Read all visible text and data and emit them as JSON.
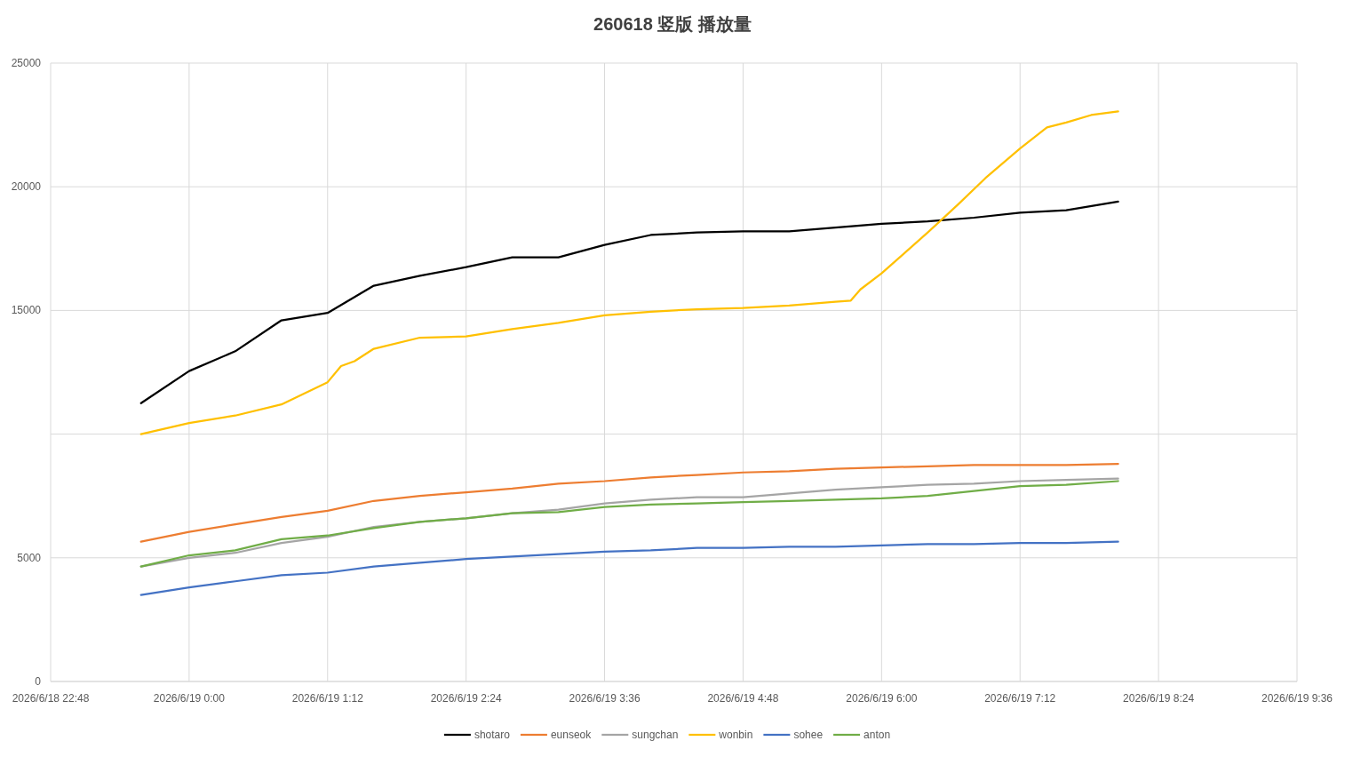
{
  "chart_data": {
    "type": "line",
    "title": "260618 竖版 播放量",
    "legend": "bottom",
    "grid": true,
    "marker": "none",
    "line_style": "solid",
    "xlim": [
      "2026-06-18T22:48",
      "2026-06-19T09:36"
    ],
    "xticks": [
      {
        "value": "2026-06-18T22:48",
        "label": "2026/6/18 22:48"
      },
      {
        "value": "2026-06-19T00:00",
        "label": "2026/6/19 0:00"
      },
      {
        "value": "2026-06-19T01:12",
        "label": "2026/6/19 1:12"
      },
      {
        "value": "2026-06-19T02:24",
        "label": "2026/6/19 2:24"
      },
      {
        "value": "2026-06-19T03:36",
        "label": "2026/6/19 3:36"
      },
      {
        "value": "2026-06-19T04:48",
        "label": "2026/6/19 4:48"
      },
      {
        "value": "2026-06-19T06:00",
        "label": "2026/6/19 6:00"
      },
      {
        "value": "2026-06-19T07:12",
        "label": "2026/6/19 7:12"
      },
      {
        "value": "2026-06-19T08:24",
        "label": "2026/6/19 8:24"
      },
      {
        "value": "2026-06-19T09:36",
        "label": "2026/6/19 9:36"
      }
    ],
    "ylim": [
      0,
      25000
    ],
    "yticks": [
      0,
      5000,
      {
        "value": 10000,
        "label": null
      },
      15000,
      20000,
      25000
    ],
    "x": [
      "2026-06-18T23:35",
      "2026-06-19T00:00",
      "2026-06-19T00:24",
      "2026-06-19T00:48",
      "2026-06-19T01:12",
      "2026-06-19T01:36",
      "2026-06-19T02:00",
      "2026-06-19T02:24",
      "2026-06-19T02:48",
      "2026-06-19T03:12",
      "2026-06-19T03:36",
      "2026-06-19T04:00",
      "2026-06-19T04:24",
      "2026-06-19T04:48",
      "2026-06-19T05:12",
      "2026-06-19T05:36",
      "2026-06-19T06:00",
      "2026-06-19T06:24",
      "2026-06-19T06:48",
      "2026-06-19T07:12",
      "2026-06-19T07:36",
      "2026-06-19T08:03"
    ],
    "series": [
      {
        "name": "shotaro",
        "color": "#000000",
        "values": [
          11250,
          12550,
          13350,
          14600,
          14900,
          16000,
          16400,
          16750,
          17150,
          17150,
          17650,
          18050,
          18150,
          18200,
          18200,
          18350,
          18500,
          18600,
          18750,
          18950,
          19050,
          19400
        ]
      },
      {
        "name": "eunseok",
        "color": "#ed7d31",
        "values": [
          5650,
          6050,
          6350,
          6650,
          6900,
          7300,
          7500,
          7650,
          7800,
          8000,
          8100,
          8250,
          8350,
          8450,
          8500,
          8600,
          8650,
          8700,
          8750,
          8750,
          8750,
          8800
        ]
      },
      {
        "name": "sungchan",
        "color": "#a5a5a5",
        "values": [
          4650,
          5000,
          5200,
          5600,
          5850,
          6250,
          6450,
          6600,
          6800,
          6950,
          7200,
          7350,
          7450,
          7450,
          7600,
          7750,
          7850,
          7950,
          8000,
          8100,
          8150,
          8200
        ]
      },
      {
        "name": "wonbin",
        "color": "#ffc000",
        "x": [
          "2026-06-18T23:35",
          "2026-06-19T00:00",
          "2026-06-19T00:24",
          "2026-06-19T00:48",
          "2026-06-19T01:12",
          "2026-06-19T01:19",
          "2026-06-19T01:26",
          "2026-06-19T01:36",
          "2026-06-19T02:00",
          "2026-06-19T02:24",
          "2026-06-19T02:48",
          "2026-06-19T03:12",
          "2026-06-19T03:36",
          "2026-06-19T04:00",
          "2026-06-19T04:24",
          "2026-06-19T04:48",
          "2026-06-19T05:12",
          "2026-06-19T05:36",
          "2026-06-19T05:44",
          "2026-06-19T05:49",
          "2026-06-19T06:00",
          "2026-06-19T06:24",
          "2026-06-19T06:40",
          "2026-06-19T06:54",
          "2026-06-19T07:12",
          "2026-06-19T07:26",
          "2026-06-19T07:36",
          "2026-06-19T07:49",
          "2026-06-19T08:03"
        ],
        "values": [
          10000,
          10450,
          10750,
          11200,
          12100,
          12750,
          12950,
          13450,
          13900,
          13950,
          14250,
          14500,
          14800,
          14950,
          15050,
          15100,
          15200,
          15350,
          15400,
          15850,
          16500,
          18150,
          19300,
          20350,
          21550,
          22400,
          22600,
          22900,
          23050
        ]
      },
      {
        "name": "sohee",
        "color": "#4472c4",
        "values": [
          3500,
          3800,
          4050,
          4300,
          4400,
          4650,
          4800,
          4950,
          5050,
          5150,
          5250,
          5300,
          5400,
          5400,
          5450,
          5450,
          5500,
          5550,
          5550,
          5600,
          5600,
          5650
        ]
      },
      {
        "name": "anton",
        "color": "#70ad47",
        "values": [
          4650,
          5100,
          5300,
          5750,
          5900,
          6200,
          6450,
          6600,
          6800,
          6850,
          7050,
          7150,
          7200,
          7250,
          7300,
          7350,
          7400,
          7500,
          7700,
          7900,
          7950,
          8100
        ]
      }
    ]
  }
}
